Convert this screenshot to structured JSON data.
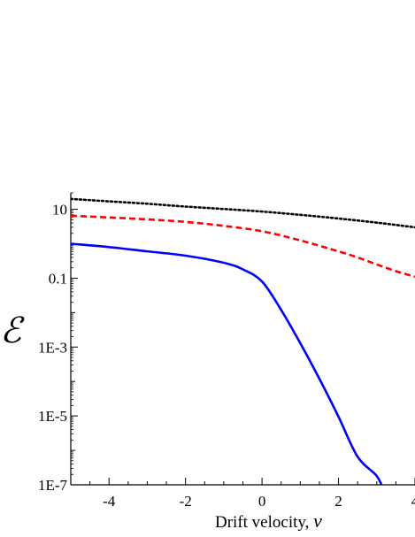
{
  "chart_data": {
    "type": "line",
    "xlabel": "Drift velocity, ",
    "xlabel_var": "v",
    "ylabel": "ℰ",
    "xlim": [
      -5,
      4.0
    ],
    "ylim": [
      1e-07,
      30
    ],
    "y_scale": "log",
    "x_ticks": [
      -4,
      -2,
      0,
      2,
      4
    ],
    "x_tick_labels": [
      "-4",
      "-2",
      "0",
      "2",
      "4"
    ],
    "y_ticks": [
      10,
      0.1,
      0.001,
      1e-05,
      1e-07
    ],
    "y_tick_labels": [
      "10",
      "0.1",
      "1E-3",
      "1E-5",
      "1E-7"
    ],
    "grid": false,
    "series": [
      {
        "style": "dotted",
        "color": "#000000",
        "x": [
          -5,
          -4,
          -3,
          -2,
          -1,
          0,
          1,
          2,
          3,
          4
        ],
        "y": [
          20,
          17,
          14.5,
          12,
          10.2,
          8.6,
          6.9,
          5.4,
          4.1,
          3.0
        ]
      },
      {
        "style": "dashed",
        "color": "#ff0000",
        "x": [
          -5,
          -4,
          -3,
          -2,
          -1,
          0,
          1,
          2,
          2.5,
          3,
          3.5,
          4
        ],
        "y": [
          6.5,
          5.8,
          5.1,
          4.3,
          3.3,
          2.3,
          1.25,
          0.6,
          0.4,
          0.25,
          0.16,
          0.11
        ]
      },
      {
        "style": "solid",
        "color": "#0000ff",
        "x": [
          -5,
          -4,
          -3,
          -2,
          -1,
          -0.5,
          0,
          0.5,
          1,
          1.5,
          2,
          2.5,
          3,
          3.2
        ],
        "y": [
          1.0,
          0.8,
          0.6,
          0.45,
          0.28,
          0.18,
          0.08,
          0.012,
          0.0013,
          0.00012,
          9.5e-06,
          6.5e-07,
          1.8e-07,
          6e-08
        ]
      }
    ]
  }
}
